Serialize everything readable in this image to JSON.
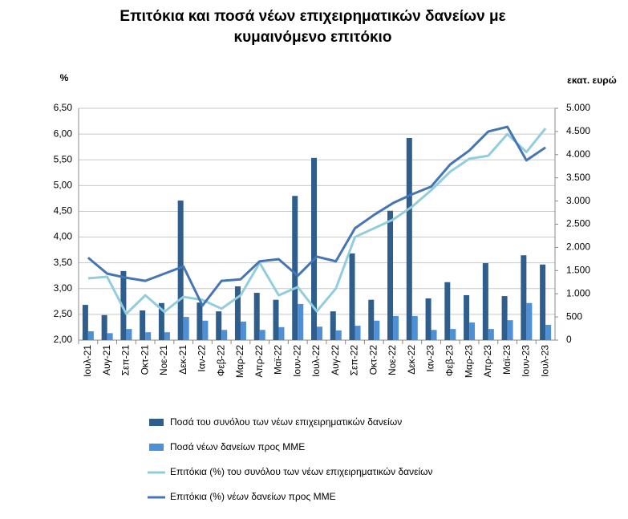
{
  "chart_data": {
    "type": "combo",
    "title": "Επιτόκια και ποσά νέων επιχειρηματικών  δανείων με κυμαινόμενο επιτόκιο",
    "y_label": "%",
    "y2_label": "εκατ. ευρώ",
    "categories": [
      "Ιουλ-21",
      "Αυγ-21",
      "Σεπ-21",
      "Οκτ-21",
      "Νοε-21",
      "Δεκ-21",
      "Ιαν-22",
      "Φεβ-22",
      "Μαρ-22",
      "Απρ-22",
      "Μαϊ-22",
      "Ιουν-22",
      "Ιουλ-22",
      "Αυγ-22",
      "Σεπ-22",
      "Οκτ-22",
      "Νοε-22",
      "Δεκ-22",
      "Ιαν-23",
      "Φεβ-23",
      "Μαρ-23",
      "Απρ-23",
      "Μαϊ-23",
      "Ιουν-23",
      "Ιουλ-23"
    ],
    "ylim": [
      2,
      6.5
    ],
    "yticks": [
      {
        "value": 2,
        "label": "2,00"
      },
      {
        "value": 2.5,
        "label": "2,50"
      },
      {
        "value": 3,
        "label": "3,00"
      },
      {
        "value": 3.5,
        "label": "3,50"
      },
      {
        "value": 4,
        "label": "4,00"
      },
      {
        "value": 4.5,
        "label": "4,50"
      },
      {
        "value": 5,
        "label": "5,00"
      },
      {
        "value": 5.5,
        "label": "5,50"
      },
      {
        "value": 6,
        "label": "6,00"
      },
      {
        "value": 6.5,
        "label": "6,50"
      }
    ],
    "y2lim": [
      0,
      5000
    ],
    "y2ticks": [
      0,
      500,
      {
        "value": 1000,
        "label": "1.000"
      },
      {
        "value": 1500,
        "label": "1.500"
      },
      {
        "value": 2000,
        "label": "2.000"
      },
      {
        "value": 2500,
        "label": "2.500"
      },
      {
        "value": 3000,
        "label": "3.000"
      },
      {
        "value": 3500,
        "label": "3.500"
      },
      {
        "value": 4000,
        "label": "4.000"
      },
      {
        "value": 4500,
        "label": "4.500"
      },
      {
        "value": 5000,
        "label": "5.000"
      }
    ],
    "grid": true,
    "series": [
      {
        "name": "Ποσά του συνόλου των νέων επιχειρηματικών δανείων",
        "type": "bar",
        "axis": "y2",
        "color": "#2f5d8c",
        "values": [
          760,
          540,
          1490,
          640,
          800,
          3010,
          810,
          620,
          1160,
          1020,
          870,
          3110,
          3930,
          620,
          1870,
          870,
          2790,
          4360,
          900,
          1250,
          970,
          1660,
          950,
          1830,
          1630
        ]
      },
      {
        "name": "Ποσά νέων δανείων προς ΜΜΕ",
        "type": "bar",
        "axis": "y2",
        "color": "#4f8fd6",
        "values": [
          190,
          150,
          240,
          170,
          170,
          500,
          420,
          220,
          400,
          220,
          280,
          780,
          290,
          210,
          310,
          420,
          520,
          520,
          220,
          240,
          380,
          240,
          430,
          800,
          330
        ]
      },
      {
        "name": "Επιτόκια (%) του συνόλου των νέων επιχειρηματικών δανείων",
        "type": "line",
        "axis": "y",
        "color": "#92cddc",
        "values": [
          3.2,
          3.23,
          2.51,
          2.87,
          2.55,
          2.84,
          2.78,
          2.61,
          2.87,
          3.5,
          2.87,
          3.03,
          2.56,
          3.0,
          4.0,
          4.17,
          4.34,
          4.59,
          4.91,
          5.27,
          5.52,
          5.58,
          6.0,
          5.65,
          6.11
        ]
      },
      {
        "name": "Επιτόκια (%) νέων δανείων προς ΜΜΕ",
        "type": "line",
        "axis": "y",
        "color": "#4675b5",
        "values": [
          3.6,
          3.29,
          3.21,
          3.15,
          3.29,
          3.43,
          2.67,
          3.15,
          3.18,
          3.53,
          3.57,
          3.25,
          3.62,
          3.53,
          4.17,
          4.43,
          4.66,
          4.83,
          4.98,
          5.41,
          5.68,
          6.05,
          6.14,
          5.49,
          5.74
        ]
      }
    ]
  }
}
